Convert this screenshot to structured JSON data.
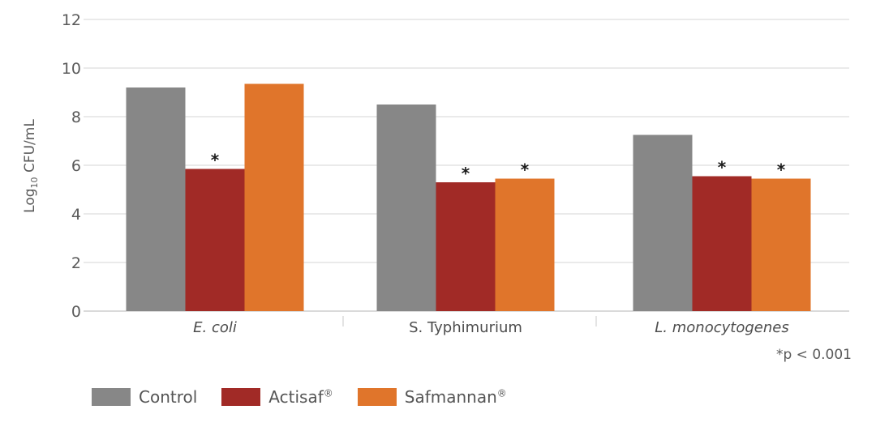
{
  "chart_data": {
    "type": "bar",
    "ylabel": {
      "prefix": "Log",
      "subscript": "10",
      "suffix": " CFU/mL"
    },
    "ylim": [
      0,
      12
    ],
    "yticks": [
      "0",
      "2",
      "4",
      "6",
      "8",
      "10",
      "12"
    ],
    "categories": [
      "E. coli",
      "S. Typhimurium",
      "L. monocytogenes"
    ],
    "category_italic": [
      true,
      false,
      true
    ],
    "grid": true,
    "legend_position": "bottom-left",
    "series": [
      {
        "name": "Control",
        "registered": false,
        "color": "#878787",
        "values": [
          9.2,
          8.5,
          7.25
        ],
        "significant": [
          false,
          false,
          false
        ]
      },
      {
        "name": "Actisaf",
        "registered": true,
        "color": "#a12a26",
        "values": [
          5.85,
          5.3,
          5.55
        ],
        "significant": [
          true,
          true,
          true
        ]
      },
      {
        "name": "Safmannan",
        "registered": true,
        "color": "#e0752b",
        "values": [
          9.35,
          5.45,
          5.45
        ],
        "significant": [
          false,
          true,
          true
        ]
      }
    ],
    "significance_marker": "*",
    "note": "*p < 0.001"
  }
}
